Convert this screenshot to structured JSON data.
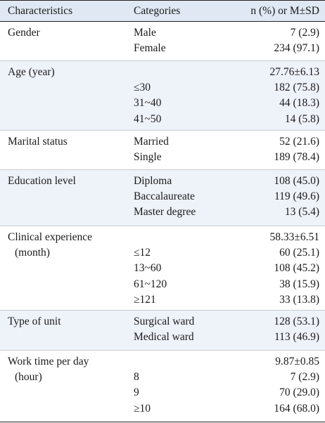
{
  "header": {
    "characteristics": "Characteristics",
    "categories": "Categories",
    "value": "n (%) or M±SD"
  },
  "groups": [
    {
      "label_lines": [
        "Gender"
      ],
      "rows": [
        {
          "category": "Male",
          "value": "7 (2.9)"
        },
        {
          "category": "Female",
          "value": "234 (97.1)"
        }
      ]
    },
    {
      "label_lines": [
        "Age (year)"
      ],
      "rows": [
        {
          "category": "",
          "value": "27.76±6.13"
        },
        {
          "category": "≤30",
          "value": "182 (75.8)"
        },
        {
          "category": "31~40",
          "value": "44 (18.3)"
        },
        {
          "category": "41~50",
          "value": "14 (5.8)"
        }
      ]
    },
    {
      "label_lines": [
        "Marital status"
      ],
      "rows": [
        {
          "category": "Married",
          "value": "52 (21.6)"
        },
        {
          "category": "Single",
          "value": "189 (78.4)"
        }
      ]
    },
    {
      "label_lines": [
        "Education level"
      ],
      "rows": [
        {
          "category": "Diploma",
          "value": "108 (45.0)"
        },
        {
          "category": "Baccalaureate",
          "value": "119 (49.6)"
        },
        {
          "category": "Master degree",
          "value": "13 (5.4)"
        }
      ]
    },
    {
      "label_lines": [
        "Clinical experience",
        "(month)"
      ],
      "rows": [
        {
          "category": "",
          "value": "58.33±6.51"
        },
        {
          "category": "≤12",
          "value": "60 (25.1)"
        },
        {
          "category": "13~60",
          "value": "108 (45.2)"
        },
        {
          "category": "61~120",
          "value": "38 (15.9)"
        },
        {
          "category": "≥121",
          "value": "33 (13.8)"
        }
      ]
    },
    {
      "label_lines": [
        "Type of unit"
      ],
      "rows": [
        {
          "category": "Surgical ward",
          "value": "128 (53.1)"
        },
        {
          "category": "Medical ward",
          "value": "113 (46.9)"
        }
      ]
    },
    {
      "label_lines": [
        "Work time per day",
        "(hour)"
      ],
      "rows": [
        {
          "category": "",
          "value": "9.87±0.85"
        },
        {
          "category": "8",
          "value": "7 (2.9)"
        },
        {
          "category": "9",
          "value": "70 (29.0)"
        },
        {
          "category": "≥10",
          "value": "164 (68.0)"
        }
      ]
    }
  ]
}
